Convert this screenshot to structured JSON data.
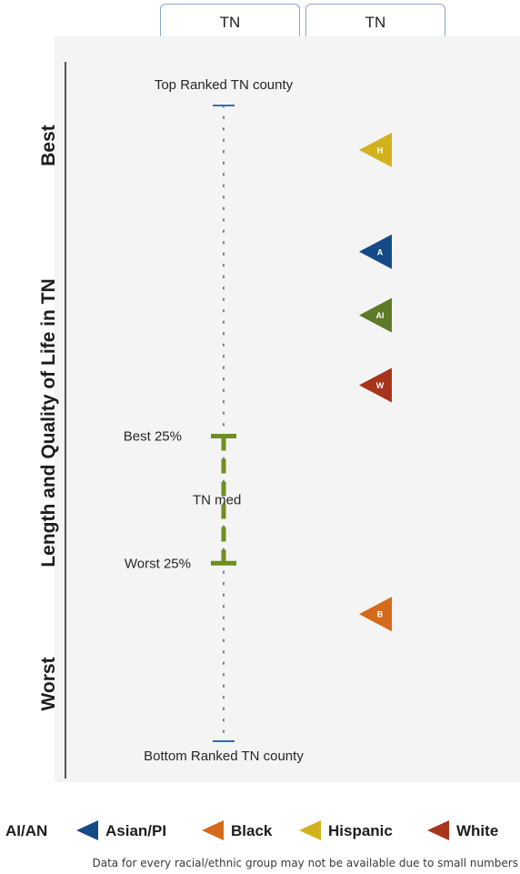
{
  "tabs": [
    {
      "label": "TN"
    },
    {
      "label": "TN"
    }
  ],
  "side_labels": {
    "best": "Best",
    "axis": "Length and Quality of Life in TN",
    "worst": "Worst"
  },
  "footnote": "Data for every racial/ethnic group may not be available due to small numbers",
  "colors": {
    "range": "#6f8e1e",
    "end_tick": "#3b6ea8",
    "dots": "#7a7a7a",
    "AI/AN": "#5d7a26",
    "Asian/PI": "#154a87",
    "Black": "#d46a1a",
    "Hispanic": "#d2b21c",
    "White": "#a8341c"
  },
  "chart_data": {
    "type": "scatter",
    "title": "",
    "ylabel": "Length and Quality of Life in TN",
    "y_direction": "Best (top) to Worst (bottom)",
    "ylim": [
      0,
      100
    ],
    "reference_labels": {
      "top": "Top Ranked TN county",
      "best25": "Best 25%",
      "median": "TN med",
      "worst25": "Worst 25%",
      "bottom": "Bottom Ranked TN county"
    },
    "reference_values": {
      "top": 0,
      "best25": 52,
      "median": 62,
      "worst25": 72,
      "bottom": 100
    },
    "series": [
      {
        "name": "Hispanic",
        "letter": "H",
        "value": 7
      },
      {
        "name": "Asian/PI",
        "letter": "A",
        "value": 23
      },
      {
        "name": "AI/AN",
        "letter": "AI",
        "value": 33
      },
      {
        "name": "White",
        "letter": "W",
        "value": 44
      },
      {
        "name": "Black",
        "letter": "B",
        "value": 80
      }
    ],
    "legend": [
      "AI/AN",
      "Asian/PI",
      "Black",
      "Hispanic",
      "White"
    ]
  }
}
